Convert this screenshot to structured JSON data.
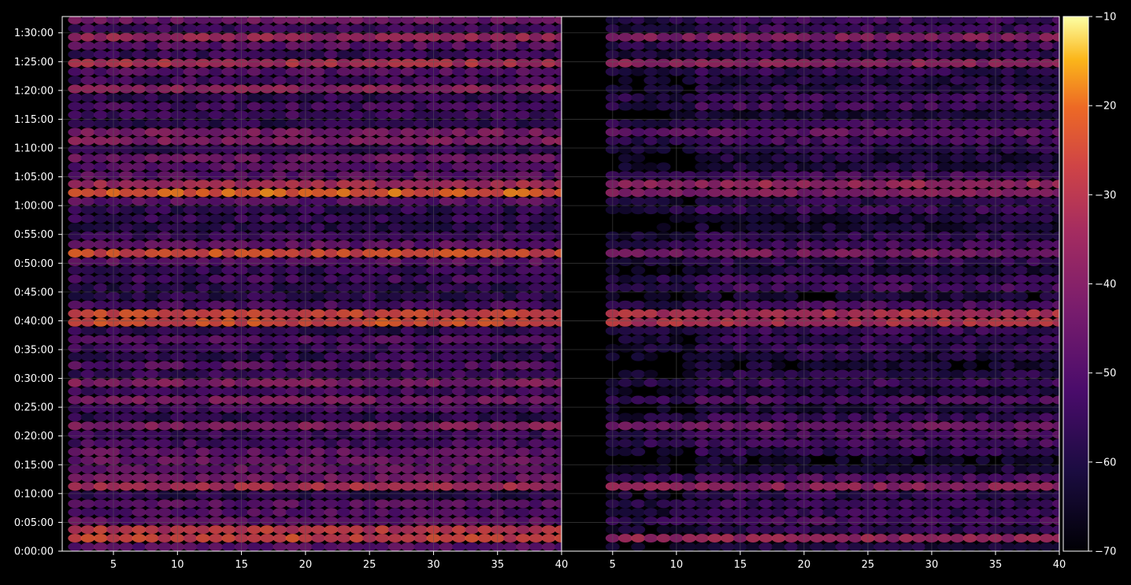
{
  "chart_data": {
    "type": "heatmap",
    "title": "",
    "xlabel": "",
    "ylabel": "",
    "panels": [
      {
        "name": "left",
        "xlim": [
          1,
          40
        ],
        "xticks": [
          "5",
          "10",
          "15",
          "20",
          "25",
          "30",
          "35",
          "40"
        ],
        "missing_x_range": []
      },
      {
        "name": "right",
        "xlim": [
          1,
          40
        ],
        "xticks": [
          "5",
          "10",
          "15",
          "20",
          "25",
          "30",
          "35",
          "40"
        ],
        "missing_x_range": [
          1,
          4
        ]
      }
    ],
    "y_range_seconds": [
      0,
      5570
    ],
    "yticks": [
      "0:00:00",
      "0:05:00",
      "0:10:00",
      "0:15:00",
      "0:20:00",
      "0:25:00",
      "0:30:00",
      "0:35:00",
      "0:40:00",
      "0:45:00",
      "0:50:00",
      "0:55:00",
      "1:00:00",
      "1:05:00",
      "1:10:00",
      "1:15:00",
      "1:20:00",
      "1:25:00",
      "1:30:00"
    ],
    "rows": 62,
    "row_step_seconds": 90,
    "colorbar": {
      "colormap": "inferno",
      "range": [
        -70,
        -10
      ],
      "ticks": [
        "−70",
        "−60",
        "−50",
        "−40",
        "−30",
        "−20",
        "−10"
      ]
    },
    "row_levels_left": [
      {
        "time": "0:01:30",
        "level": -27
      },
      {
        "time": "0:03:00",
        "level": -30
      },
      {
        "time": "0:10:00",
        "level": -33
      },
      {
        "time": "0:14:00",
        "level": -45
      },
      {
        "time": "0:21:30",
        "level": -40
      },
      {
        "time": "0:25:00",
        "level": -42
      },
      {
        "time": "0:28:00",
        "level": -40
      },
      {
        "time": "0:39:00",
        "level": -25
      },
      {
        "time": "0:41:00",
        "level": -27
      },
      {
        "time": "0:50:30",
        "level": -25
      },
      {
        "time": "1:01:00",
        "level": -22
      },
      {
        "time": "1:03:30",
        "level": -34
      },
      {
        "time": "1:10:00",
        "level": -40
      },
      {
        "time": "1:12:00",
        "level": -42
      },
      {
        "time": "1:20:00",
        "level": -38
      },
      {
        "time": "1:24:00",
        "level": -32
      },
      {
        "time": "1:28:30",
        "level": -36
      }
    ],
    "row_levels_right": [
      {
        "time": "0:01:30",
        "level": -36
      },
      {
        "time": "0:10:00",
        "level": -38
      },
      {
        "time": "0:21:30",
        "level": -44
      },
      {
        "time": "0:39:00",
        "level": -32
      },
      {
        "time": "0:41:00",
        "level": -32
      },
      {
        "time": "0:50:30",
        "level": -42
      },
      {
        "time": "1:01:00",
        "level": -40
      },
      {
        "time": "1:03:30",
        "level": -36
      },
      {
        "time": "1:12:00",
        "level": -46
      },
      {
        "time": "1:24:00",
        "level": -38
      },
      {
        "time": "1:28:30",
        "level": -40
      }
    ],
    "grid": true,
    "background": "#000000",
    "grid_color": "#5a5a5a",
    "axis_color": "#ffffff"
  }
}
